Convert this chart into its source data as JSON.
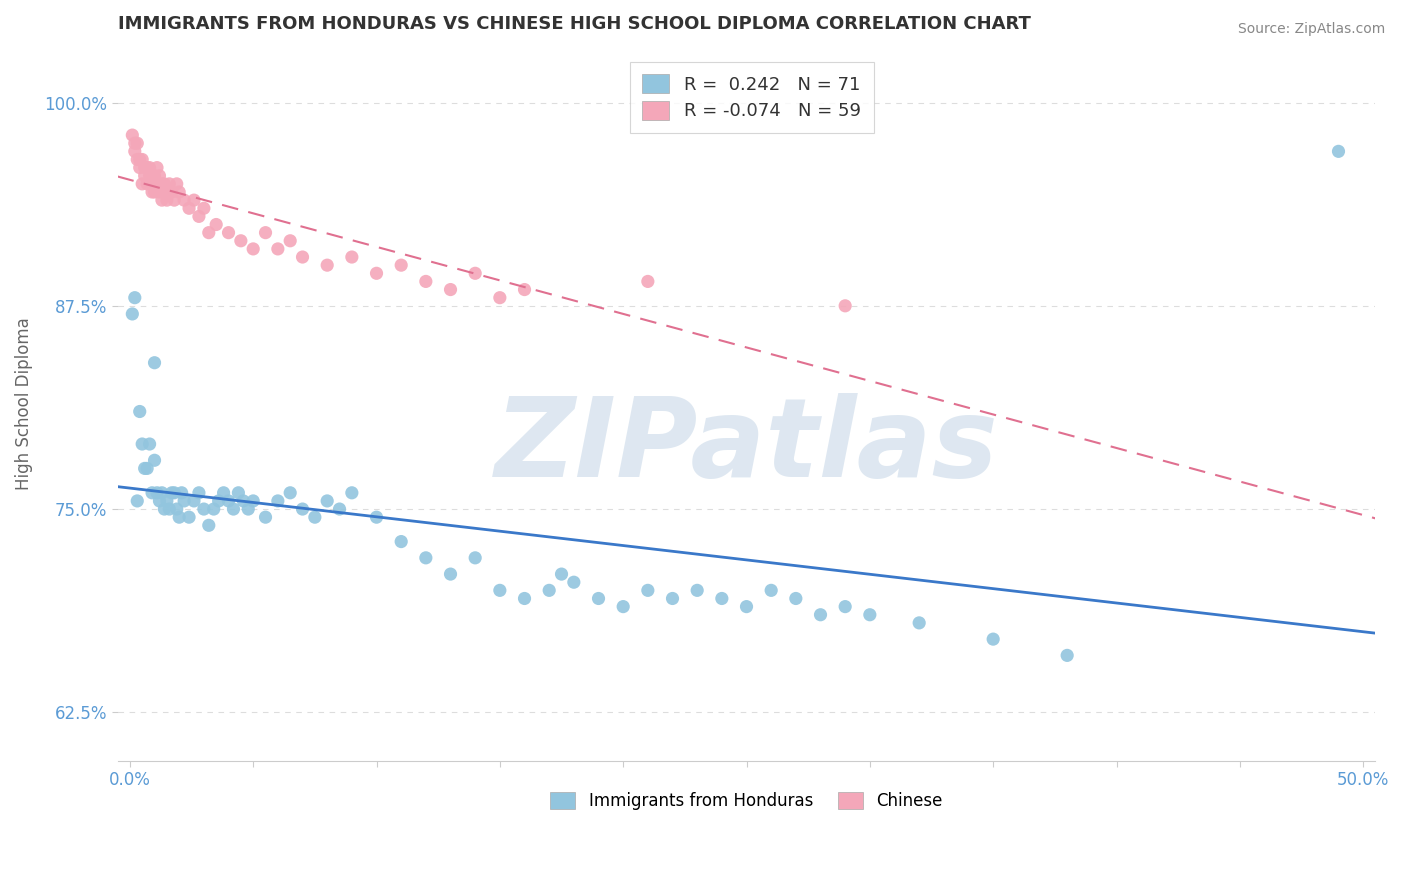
{
  "title": "IMMIGRANTS FROM HONDURAS VS CHINESE HIGH SCHOOL DIPLOMA CORRELATION CHART",
  "source_text": "Source: ZipAtlas.com",
  "ylabel": "High School Diploma",
  "xlabel": "",
  "xlim": [
    -0.005,
    0.505
  ],
  "ylim": [
    0.595,
    1.035
  ],
  "yticks": [
    0.625,
    0.75,
    0.875,
    1.0
  ],
  "ytick_labels": [
    "62.5%",
    "75.0%",
    "87.5%",
    "100.0%"
  ],
  "xticks": [
    0.0,
    0.05,
    0.1,
    0.15,
    0.2,
    0.25,
    0.3,
    0.35,
    0.4,
    0.45,
    0.5
  ],
  "xtick_labels": [
    "0.0%",
    "",
    "",
    "",
    "",
    "",
    "",
    "",
    "",
    "",
    "50.0%"
  ],
  "series": [
    {
      "name": "Immigrants from Honduras",
      "R": 0.242,
      "N": 71,
      "color": "#92C5DE",
      "trendline_color": "#3A78C9",
      "trendline_solid": true,
      "x": [
        0.001,
        0.002,
        0.003,
        0.004,
        0.005,
        0.006,
        0.007,
        0.008,
        0.009,
        0.01,
        0.01,
        0.011,
        0.012,
        0.013,
        0.014,
        0.015,
        0.016,
        0.017,
        0.018,
        0.019,
        0.02,
        0.021,
        0.022,
        0.024,
        0.026,
        0.028,
        0.03,
        0.032,
        0.034,
        0.036,
        0.038,
        0.04,
        0.042,
        0.044,
        0.046,
        0.048,
        0.05,
        0.055,
        0.06,
        0.065,
        0.07,
        0.075,
        0.08,
        0.085,
        0.09,
        0.1,
        0.11,
        0.12,
        0.13,
        0.14,
        0.15,
        0.16,
        0.17,
        0.175,
        0.18,
        0.19,
        0.2,
        0.21,
        0.22,
        0.23,
        0.24,
        0.25,
        0.26,
        0.27,
        0.28,
        0.29,
        0.3,
        0.32,
        0.35,
        0.38,
        0.49
      ],
      "y": [
        0.87,
        0.88,
        0.755,
        0.81,
        0.79,
        0.775,
        0.775,
        0.79,
        0.76,
        0.78,
        0.84,
        0.76,
        0.755,
        0.76,
        0.75,
        0.755,
        0.75,
        0.76,
        0.76,
        0.75,
        0.745,
        0.76,
        0.755,
        0.745,
        0.755,
        0.76,
        0.75,
        0.74,
        0.75,
        0.755,
        0.76,
        0.755,
        0.75,
        0.76,
        0.755,
        0.75,
        0.755,
        0.745,
        0.755,
        0.76,
        0.75,
        0.745,
        0.755,
        0.75,
        0.76,
        0.745,
        0.73,
        0.72,
        0.71,
        0.72,
        0.7,
        0.695,
        0.7,
        0.71,
        0.705,
        0.695,
        0.69,
        0.7,
        0.695,
        0.7,
        0.695,
        0.69,
        0.7,
        0.695,
        0.685,
        0.69,
        0.685,
        0.68,
        0.67,
        0.66,
        0.97
      ]
    },
    {
      "name": "Chinese",
      "R": -0.074,
      "N": 59,
      "color": "#F4A7B9",
      "trendline_color": "#E07090",
      "trendline_solid": false,
      "x": [
        0.001,
        0.002,
        0.002,
        0.003,
        0.003,
        0.004,
        0.004,
        0.005,
        0.005,
        0.006,
        0.006,
        0.007,
        0.007,
        0.008,
        0.008,
        0.009,
        0.009,
        0.01,
        0.01,
        0.011,
        0.011,
        0.012,
        0.012,
        0.013,
        0.013,
        0.014,
        0.014,
        0.015,
        0.015,
        0.016,
        0.017,
        0.018,
        0.019,
        0.02,
        0.022,
        0.024,
        0.026,
        0.028,
        0.03,
        0.032,
        0.035,
        0.04,
        0.045,
        0.05,
        0.055,
        0.06,
        0.065,
        0.07,
        0.08,
        0.09,
        0.1,
        0.11,
        0.12,
        0.13,
        0.14,
        0.15,
        0.16,
        0.21,
        0.29
      ],
      "y": [
        0.98,
        0.975,
        0.97,
        0.975,
        0.965,
        0.965,
        0.96,
        0.965,
        0.95,
        0.96,
        0.955,
        0.96,
        0.95,
        0.955,
        0.96,
        0.945,
        0.95,
        0.955,
        0.945,
        0.95,
        0.96,
        0.945,
        0.955,
        0.95,
        0.94,
        0.945,
        0.95,
        0.945,
        0.94,
        0.95,
        0.945,
        0.94,
        0.95,
        0.945,
        0.94,
        0.935,
        0.94,
        0.93,
        0.935,
        0.92,
        0.925,
        0.92,
        0.915,
        0.91,
        0.92,
        0.91,
        0.915,
        0.905,
        0.9,
        0.905,
        0.895,
        0.9,
        0.89,
        0.885,
        0.895,
        0.88,
        0.885,
        0.89,
        0.875
      ]
    }
  ],
  "legend_box_color": "#FFFFFF",
  "legend_border_color": "#CCCCCC",
  "watermark": "ZIPatlas",
  "watermark_color": "#C8D8E8",
  "background_color": "#FFFFFF",
  "grid_color": "#DDDDDD",
  "title_color": "#333333",
  "axis_color": "#5B9BD5"
}
